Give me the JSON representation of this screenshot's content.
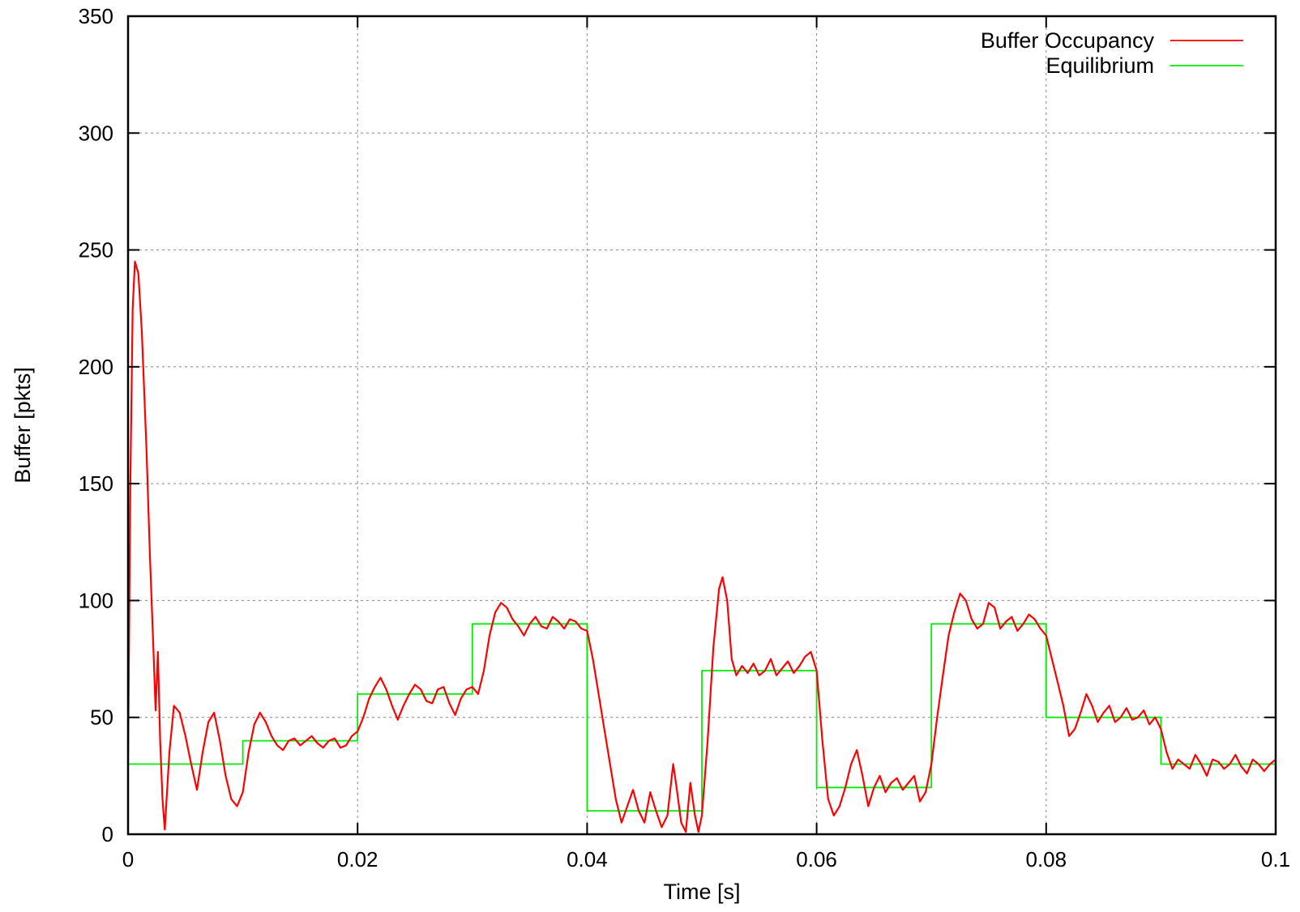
{
  "chart_data": {
    "type": "line",
    "title": "",
    "xlabel": "Time [s]",
    "ylabel": "Buffer [pkts]",
    "xlim": [
      0,
      0.1
    ],
    "ylim": [
      0,
      350
    ],
    "grid": true,
    "legend_position": "top-right",
    "x_ticks": [
      {
        "value": 0,
        "label": "0"
      },
      {
        "value": 0.02,
        "label": "0.02"
      },
      {
        "value": 0.04,
        "label": "0.04"
      },
      {
        "value": 0.06,
        "label": "0.06"
      },
      {
        "value": 0.08,
        "label": "0.08"
      },
      {
        "value": 0.1,
        "label": "0.1"
      }
    ],
    "y_ticks": [
      {
        "value": 0,
        "label": "0"
      },
      {
        "value": 50,
        "label": "50"
      },
      {
        "value": 100,
        "label": "100"
      },
      {
        "value": 150,
        "label": "150"
      },
      {
        "value": 200,
        "label": "200"
      },
      {
        "value": 250,
        "label": "250"
      },
      {
        "value": 300,
        "label": "300"
      },
      {
        "value": 350,
        "label": "350"
      }
    ],
    "series": [
      {
        "name": "Buffer Occupancy",
        "color": "#ff0000",
        "points": [
          [
            0,
            30
          ],
          [
            0.0002,
            150
          ],
          [
            0.0004,
            225
          ],
          [
            0.0006,
            245
          ],
          [
            0.0009,
            240
          ],
          [
            0.0012,
            215
          ],
          [
            0.0016,
            165
          ],
          [
            0.0019,
            120
          ],
          [
            0.0022,
            80
          ],
          [
            0.0024,
            53
          ],
          [
            0.0026,
            78
          ],
          [
            0.0028,
            40
          ],
          [
            0.003,
            15
          ],
          [
            0.0032,
            2
          ],
          [
            0.0036,
            35
          ],
          [
            0.004,
            55
          ],
          [
            0.0045,
            52
          ],
          [
            0.005,
            42
          ],
          [
            0.0055,
            30
          ],
          [
            0.006,
            19
          ],
          [
            0.0065,
            35
          ],
          [
            0.007,
            48
          ],
          [
            0.0075,
            52
          ],
          [
            0.008,
            40
          ],
          [
            0.0085,
            25
          ],
          [
            0.009,
            15
          ],
          [
            0.0095,
            12
          ],
          [
            0.01,
            18
          ],
          [
            0.0105,
            35
          ],
          [
            0.011,
            47
          ],
          [
            0.0115,
            52
          ],
          [
            0.012,
            48
          ],
          [
            0.0125,
            42
          ],
          [
            0.013,
            38
          ],
          [
            0.0135,
            36
          ],
          [
            0.014,
            40
          ],
          [
            0.0145,
            41
          ],
          [
            0.015,
            38
          ],
          [
            0.0155,
            40
          ],
          [
            0.016,
            42
          ],
          [
            0.0165,
            39
          ],
          [
            0.017,
            37
          ],
          [
            0.0175,
            40
          ],
          [
            0.018,
            41
          ],
          [
            0.0185,
            37
          ],
          [
            0.019,
            38
          ],
          [
            0.0195,
            42
          ],
          [
            0.02,
            44
          ],
          [
            0.0205,
            50
          ],
          [
            0.021,
            58
          ],
          [
            0.0215,
            63
          ],
          [
            0.022,
            67
          ],
          [
            0.0225,
            62
          ],
          [
            0.023,
            55
          ],
          [
            0.0235,
            49
          ],
          [
            0.024,
            55
          ],
          [
            0.0245,
            60
          ],
          [
            0.025,
            64
          ],
          [
            0.0255,
            62
          ],
          [
            0.026,
            57
          ],
          [
            0.0265,
            56
          ],
          [
            0.027,
            62
          ],
          [
            0.0275,
            63
          ],
          [
            0.028,
            56
          ],
          [
            0.0285,
            51
          ],
          [
            0.029,
            58
          ],
          [
            0.0295,
            62
          ],
          [
            0.03,
            63
          ],
          [
            0.0305,
            60
          ],
          [
            0.031,
            70
          ],
          [
            0.0315,
            85
          ],
          [
            0.032,
            95
          ],
          [
            0.0325,
            99
          ],
          [
            0.033,
            97
          ],
          [
            0.0335,
            92
          ],
          [
            0.034,
            89
          ],
          [
            0.0345,
            85
          ],
          [
            0.035,
            90
          ],
          [
            0.0355,
            93
          ],
          [
            0.036,
            89
          ],
          [
            0.0365,
            88
          ],
          [
            0.037,
            93
          ],
          [
            0.0375,
            91
          ],
          [
            0.038,
            88
          ],
          [
            0.0385,
            92
          ],
          [
            0.039,
            91
          ],
          [
            0.0395,
            88
          ],
          [
            0.04,
            87
          ],
          [
            0.0405,
            75
          ],
          [
            0.041,
            60
          ],
          [
            0.0415,
            45
          ],
          [
            0.042,
            30
          ],
          [
            0.0425,
            15
          ],
          [
            0.043,
            5
          ],
          [
            0.0435,
            12
          ],
          [
            0.044,
            19
          ],
          [
            0.0445,
            10
          ],
          [
            0.045,
            5
          ],
          [
            0.0455,
            18
          ],
          [
            0.046,
            10
          ],
          [
            0.0465,
            3
          ],
          [
            0.047,
            8
          ],
          [
            0.0475,
            30
          ],
          [
            0.0478,
            20
          ],
          [
            0.0482,
            5
          ],
          [
            0.0486,
            1
          ],
          [
            0.049,
            22
          ],
          [
            0.0494,
            8
          ],
          [
            0.0497,
            1
          ],
          [
            0.05,
            8
          ],
          [
            0.0505,
            40
          ],
          [
            0.051,
            80
          ],
          [
            0.0515,
            105
          ],
          [
            0.0518,
            110
          ],
          [
            0.0522,
            100
          ],
          [
            0.0526,
            75
          ],
          [
            0.053,
            68
          ],
          [
            0.0535,
            72
          ],
          [
            0.054,
            69
          ],
          [
            0.0545,
            73
          ],
          [
            0.055,
            68
          ],
          [
            0.0555,
            70
          ],
          [
            0.056,
            75
          ],
          [
            0.0565,
            68
          ],
          [
            0.057,
            71
          ],
          [
            0.0575,
            74
          ],
          [
            0.058,
            69
          ],
          [
            0.0585,
            72
          ],
          [
            0.059,
            76
          ],
          [
            0.0595,
            78
          ],
          [
            0.06,
            70
          ],
          [
            0.0605,
            40
          ],
          [
            0.061,
            15
          ],
          [
            0.0615,
            8
          ],
          [
            0.062,
            12
          ],
          [
            0.0625,
            20
          ],
          [
            0.063,
            30
          ],
          [
            0.0635,
            36
          ],
          [
            0.064,
            25
          ],
          [
            0.0645,
            12
          ],
          [
            0.065,
            20
          ],
          [
            0.0655,
            25
          ],
          [
            0.066,
            18
          ],
          [
            0.0665,
            22
          ],
          [
            0.067,
            24
          ],
          [
            0.0675,
            19
          ],
          [
            0.068,
            22
          ],
          [
            0.0685,
            25
          ],
          [
            0.069,
            14
          ],
          [
            0.0695,
            18
          ],
          [
            0.07,
            30
          ],
          [
            0.0705,
            50
          ],
          [
            0.071,
            68
          ],
          [
            0.0715,
            85
          ],
          [
            0.072,
            95
          ],
          [
            0.0725,
            103
          ],
          [
            0.073,
            100
          ],
          [
            0.0735,
            92
          ],
          [
            0.074,
            88
          ],
          [
            0.0745,
            90
          ],
          [
            0.075,
            99
          ],
          [
            0.0755,
            97
          ],
          [
            0.076,
            88
          ],
          [
            0.0765,
            91
          ],
          [
            0.077,
            93
          ],
          [
            0.0775,
            87
          ],
          [
            0.078,
            90
          ],
          [
            0.0785,
            94
          ],
          [
            0.079,
            92
          ],
          [
            0.0795,
            88
          ],
          [
            0.08,
            85
          ],
          [
            0.0805,
            75
          ],
          [
            0.081,
            65
          ],
          [
            0.0815,
            55
          ],
          [
            0.082,
            42
          ],
          [
            0.0825,
            45
          ],
          [
            0.083,
            52
          ],
          [
            0.0835,
            60
          ],
          [
            0.084,
            55
          ],
          [
            0.0845,
            48
          ],
          [
            0.085,
            52
          ],
          [
            0.0855,
            55
          ],
          [
            0.086,
            48
          ],
          [
            0.0865,
            50
          ],
          [
            0.087,
            54
          ],
          [
            0.0875,
            49
          ],
          [
            0.088,
            50
          ],
          [
            0.0885,
            53
          ],
          [
            0.089,
            47
          ],
          [
            0.0895,
            50
          ],
          [
            0.09,
            45
          ],
          [
            0.0905,
            35
          ],
          [
            0.091,
            28
          ],
          [
            0.0915,
            32
          ],
          [
            0.092,
            30
          ],
          [
            0.0925,
            28
          ],
          [
            0.093,
            34
          ],
          [
            0.0935,
            30
          ],
          [
            0.094,
            25
          ],
          [
            0.0945,
            32
          ],
          [
            0.095,
            31
          ],
          [
            0.0955,
            28
          ],
          [
            0.096,
            30
          ],
          [
            0.0965,
            34
          ],
          [
            0.097,
            29
          ],
          [
            0.0975,
            26
          ],
          [
            0.098,
            32
          ],
          [
            0.0985,
            30
          ],
          [
            0.099,
            27
          ],
          [
            0.0995,
            30
          ],
          [
            0.1,
            32
          ]
        ]
      },
      {
        "name": "Equilibrium",
        "color": "#00ee00",
        "points": [
          [
            0,
            30
          ],
          [
            0.01,
            30
          ],
          [
            0.01,
            40
          ],
          [
            0.02,
            40
          ],
          [
            0.02,
            60
          ],
          [
            0.03,
            60
          ],
          [
            0.03,
            90
          ],
          [
            0.04,
            90
          ],
          [
            0.04,
            10
          ],
          [
            0.05,
            10
          ],
          [
            0.05,
            70
          ],
          [
            0.06,
            70
          ],
          [
            0.06,
            20
          ],
          [
            0.07,
            20
          ],
          [
            0.07,
            90
          ],
          [
            0.08,
            90
          ],
          [
            0.08,
            50
          ],
          [
            0.09,
            50
          ],
          [
            0.09,
            30
          ],
          [
            0.1,
            30
          ]
        ]
      }
    ]
  }
}
